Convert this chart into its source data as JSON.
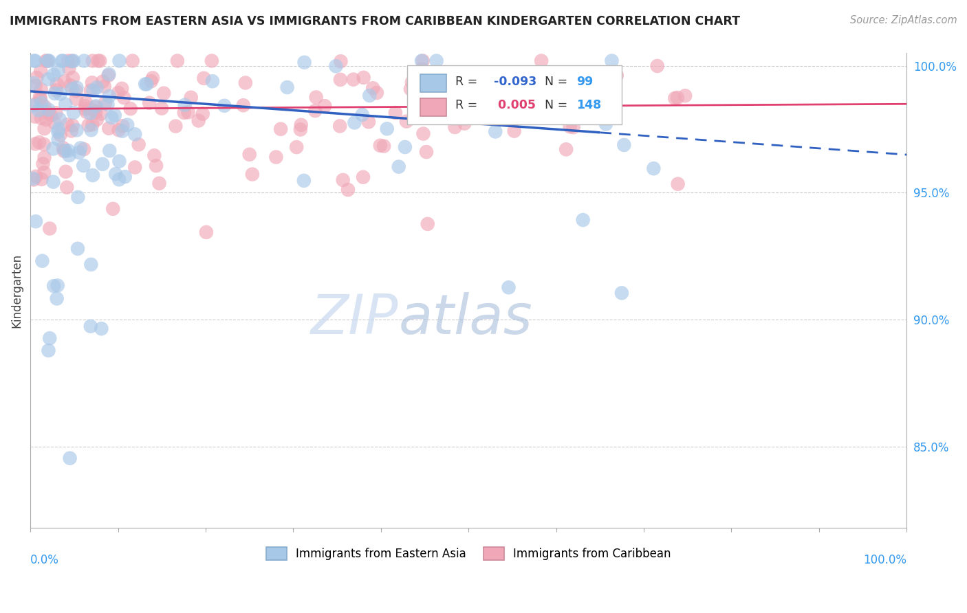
{
  "title": "IMMIGRANTS FROM EASTERN ASIA VS IMMIGRANTS FROM CARIBBEAN KINDERGARTEN CORRELATION CHART",
  "source": "Source: ZipAtlas.com",
  "ylabel": "Kindergarten",
  "color_blue": "#A8C8E8",
  "color_pink": "#F0A8B8",
  "color_blue_line": "#3060C0",
  "color_pink_line": "#E04070",
  "watermark_zip": "ZIP",
  "watermark_atlas": "atlas",
  "ylim_low": 0.818,
  "ylim_high": 1.005,
  "blue_intercept": 0.99,
  "blue_slope": -0.025,
  "pink_intercept": 0.983,
  "pink_slope": 0.002
}
